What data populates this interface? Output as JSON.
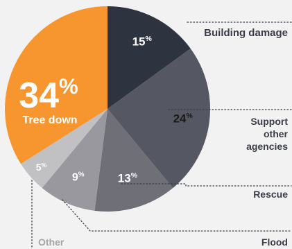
{
  "chart_data": {
    "type": "pie",
    "title": "",
    "unit": "%",
    "slices": [
      {
        "label": "Building damage",
        "value": 15,
        "color": "#2e3340"
      },
      {
        "label": "Support other agencies",
        "value": 24,
        "color": "#555762"
      },
      {
        "label": "Rescue",
        "value": 13,
        "color": "#6e6f77"
      },
      {
        "label": "Flood",
        "value": 9,
        "color": "#98989e"
      },
      {
        "label": "Other",
        "value": 5,
        "color": "#c1c1c4"
      },
      {
        "label": "Tree down",
        "value": 34,
        "color": "#f7962e"
      }
    ],
    "legend_label_color": "#3a3d48",
    "muted_label_color": "#a6a6aa",
    "leader_line_color": "#3a3d48"
  }
}
